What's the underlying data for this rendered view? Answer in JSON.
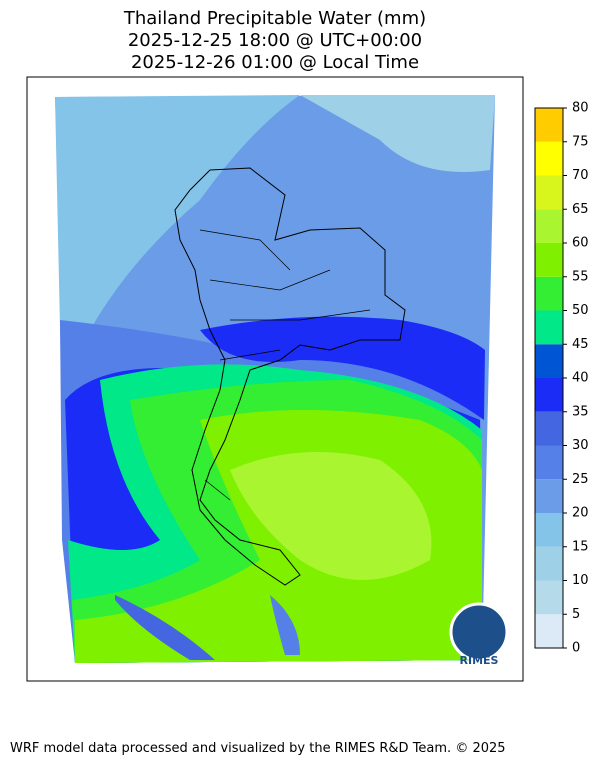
{
  "title": [
    "Thailand Precipitable Water (mm)",
    "2025-12-25 18:00 @ UTC+00:00",
    "2025-12-26 01:00 @ Local Time"
  ],
  "colorbar": {
    "lim": [
      0,
      80
    ],
    "ticks": [
      0,
      5,
      10,
      15,
      20,
      25,
      30,
      35,
      40,
      45,
      50,
      55,
      60,
      65,
      70,
      75,
      80
    ],
    "colors": [
      "#dbeaf6",
      "#b5dae9",
      "#9ed0e8",
      "#84c4e8",
      "#6a9ce8",
      "#5580e8",
      "#4466e0",
      "#1a2cf5",
      "#0055d4",
      "#00e888",
      "#33ee33",
      "#7ff000",
      "#a8f530",
      "#d8f51c",
      "#ffff00",
      "#ffcc00"
    ]
  },
  "logo": "RIMES",
  "footer": "WRF model data processed and visualized by the RIMES R&D Team. © 2025"
}
